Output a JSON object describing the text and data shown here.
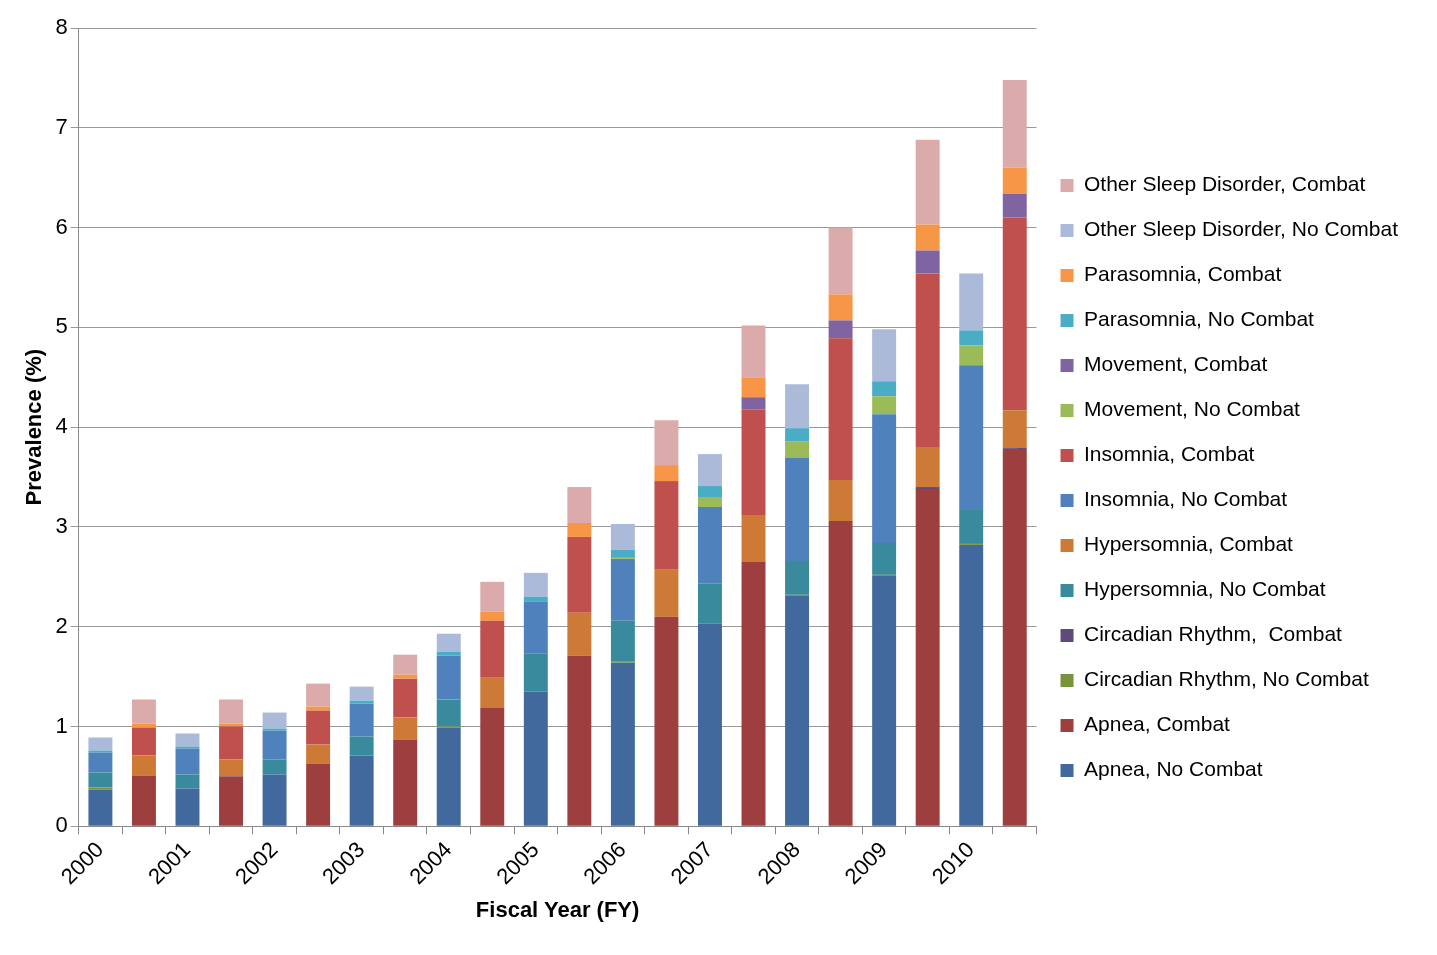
{
  "chart_data": {
    "type": "bar",
    "xlabel": "Fiscal Year (FY)",
    "ylabel": "Prevalence (%)",
    "categories": [
      "2000",
      null,
      "2001",
      null,
      "2002",
      null,
      "2003",
      null,
      "2004",
      null,
      "2005",
      null,
      "2006",
      null,
      "2007",
      null,
      "2008",
      null,
      "2009",
      null,
      "2010",
      null
    ],
    "stacked": true,
    "ylim": [
      0,
      8
    ],
    "yticks": [
      0,
      1,
      2,
      3,
      4,
      5,
      6,
      7,
      8
    ],
    "grid": "y",
    "legend": "right",
    "series": [
      {
        "name": "Apnea, No Combat",
        "color": "#41699e",
        "values": [
          0.37,
          null,
          0.38,
          null,
          0.52,
          null,
          0.71,
          null,
          0.99,
          null,
          1.35,
          null,
          1.64,
          null,
          2.03,
          null,
          2.31,
          null,
          2.51,
          null,
          2.82,
          null
        ]
      },
      {
        "name": "Apnea, Combat",
        "color": "#9e3f3f",
        "values": [
          null,
          0.51,
          null,
          0.5,
          null,
          0.63,
          null,
          0.87,
          null,
          1.19,
          null,
          1.71,
          null,
          2.1,
          null,
          2.65,
          null,
          3.05,
          null,
          3.38,
          null,
          3.78
        ]
      },
      {
        "name": "Circadian Rhythm, No Combat",
        "color": "#77933c",
        "values": [
          0.02,
          null,
          null,
          null,
          null,
          null,
          null,
          null,
          0.01,
          null,
          null,
          null,
          0.01,
          null,
          null,
          null,
          0.01,
          null,
          0.01,
          null,
          0.01,
          null
        ]
      },
      {
        "name": "Circadian Rhythm,  Combat",
        "color": "#604a7b",
        "values": [
          null,
          null,
          null,
          0.01,
          null,
          null,
          null,
          null,
          null,
          null,
          null,
          null,
          null,
          null,
          null,
          null,
          null,
          0.01,
          null,
          0.02,
          null,
          0.01
        ]
      },
      {
        "name": "Hypersomnia, No Combat",
        "color": "#3a8a9e",
        "values": [
          0.15,
          null,
          0.14,
          null,
          0.15,
          null,
          0.19,
          null,
          0.27,
          null,
          0.38,
          null,
          0.41,
          null,
          0.4,
          null,
          0.34,
          null,
          0.32,
          null,
          0.34,
          null
        ]
      },
      {
        "name": "Hypersomnia, Combat",
        "color": "#cc7a35",
        "values": [
          null,
          0.2,
          null,
          0.16,
          null,
          0.19,
          null,
          0.22,
          null,
          0.3,
          null,
          0.43,
          null,
          0.47,
          null,
          0.47,
          null,
          0.41,
          null,
          0.4,
          null,
          0.38
        ]
      },
      {
        "name": "Insomnia, No Combat",
        "color": "#4f81bd",
        "values": [
          0.2,
          null,
          0.26,
          null,
          0.29,
          null,
          0.33,
          null,
          0.44,
          null,
          0.52,
          null,
          0.62,
          null,
          0.77,
          null,
          1.03,
          null,
          1.29,
          null,
          1.45,
          null
        ]
      },
      {
        "name": "Insomnia, Combat",
        "color": "#c0504d",
        "values": [
          null,
          0.28,
          null,
          0.33,
          null,
          0.34,
          null,
          0.39,
          null,
          0.57,
          null,
          0.76,
          null,
          0.88,
          null,
          1.06,
          null,
          1.42,
          null,
          1.74,
          null,
          1.93
        ]
      },
      {
        "name": "Movement, No Combat",
        "color": "#9bbb59",
        "values": [
          null,
          null,
          null,
          null,
          null,
          null,
          null,
          null,
          null,
          null,
          null,
          null,
          0.01,
          null,
          0.1,
          null,
          0.17,
          null,
          0.18,
          null,
          0.2,
          null
        ]
      },
      {
        "name": "Movement, Combat",
        "color": "#8064a2",
        "values": [
          null,
          null,
          null,
          null,
          null,
          null,
          null,
          null,
          null,
          null,
          null,
          null,
          null,
          0.01,
          null,
          0.12,
          null,
          0.18,
          null,
          0.23,
          null,
          0.24
        ]
      },
      {
        "name": "Parasomnia, No Combat",
        "color": "#4bacc6",
        "values": [
          0.02,
          null,
          0.02,
          null,
          0.02,
          null,
          0.03,
          null,
          0.04,
          null,
          0.05,
          null,
          0.08,
          null,
          0.11,
          null,
          0.13,
          null,
          0.15,
          null,
          0.15,
          null
        ]
      },
      {
        "name": "Parasomnia, Combat",
        "color": "#f79646",
        "values": [
          null,
          0.04,
          null,
          0.03,
          null,
          0.04,
          null,
          0.04,
          null,
          0.09,
          null,
          0.14,
          null,
          0.16,
          null,
          0.2,
          null,
          0.26,
          null,
          0.26,
          null,
          0.26
        ]
      },
      {
        "name": "Other Sleep Disorder, No Combat",
        "color": "#aabad8",
        "values": [
          0.13,
          null,
          0.13,
          null,
          0.16,
          null,
          0.14,
          null,
          0.18,
          null,
          0.24,
          null,
          0.26,
          null,
          0.32,
          null,
          0.44,
          null,
          0.52,
          null,
          0.57,
          null
        ]
      },
      {
        "name": "Other Sleep Disorder, Combat",
        "color": "#dbaaaa",
        "values": [
          null,
          0.24,
          null,
          0.24,
          null,
          0.23,
          null,
          0.2,
          null,
          0.3,
          null,
          0.36,
          null,
          0.45,
          null,
          0.52,
          null,
          0.67,
          null,
          0.85,
          null,
          0.88
        ]
      }
    ]
  }
}
